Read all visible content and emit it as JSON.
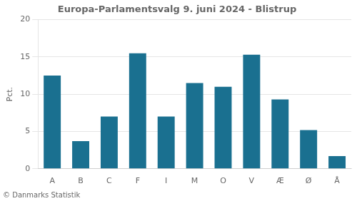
{
  "chart_data": {
    "type": "bar",
    "title": "Europa-Parlamentsvalg 9. juni 2024 - Blistrup",
    "categories": [
      "A",
      "B",
      "C",
      "F",
      "I",
      "M",
      "O",
      "V",
      "Æ",
      "Ø",
      "Å"
    ],
    "values": [
      12.5,
      3.7,
      7.0,
      15.5,
      7.0,
      11.5,
      11.0,
      15.3,
      9.3,
      5.2,
      1.7
    ],
    "color": "#1a7090",
    "ylabel": "Pct.",
    "annotations": [
      "© Danmarks Statistik"
    ],
    "ylim": [
      0,
      20
    ],
    "yticks": [
      0,
      5,
      10,
      15,
      20
    ],
    "grid": true
  }
}
